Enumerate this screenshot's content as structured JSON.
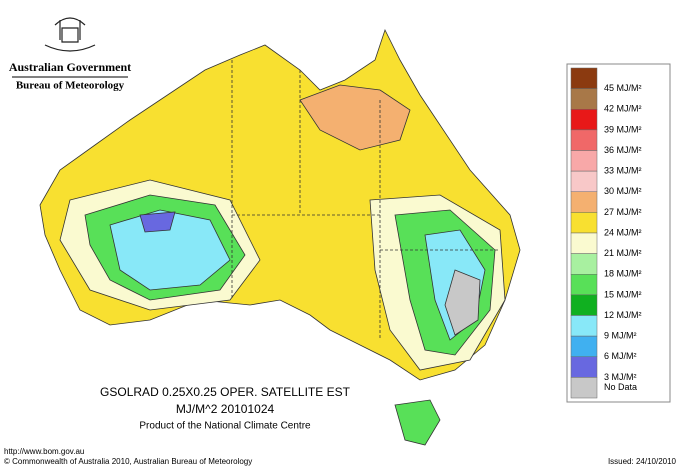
{
  "header": {
    "title": "Australian Government",
    "subtitle": "Bureau of Meteorology"
  },
  "product": {
    "line1": "GSOLRAD    0.25X0.25 OPER. SATELLITE EST",
    "line2": "MJ/M^2   20101024",
    "line3": "Product of the National Climate Centre"
  },
  "legend": {
    "items": [
      {
        "label": "45 MJ/M²",
        "color": "#8b3a10"
      },
      {
        "label": "42 MJ/M²",
        "color": "#a87848"
      },
      {
        "label": "39 MJ/M²",
        "color": "#e81818"
      },
      {
        "label": "36 MJ/M²",
        "color": "#f06868"
      },
      {
        "label": "33 MJ/M²",
        "color": "#f8a8a8"
      },
      {
        "label": "30 MJ/M²",
        "color": "#f8c8c8"
      },
      {
        "label": "27 MJ/M²",
        "color": "#f4b070"
      },
      {
        "label": "24 MJ/M²",
        "color": "#f8e030"
      },
      {
        "label": "21 MJ/M²",
        "color": "#fafad0"
      },
      {
        "label": "18 MJ/M²",
        "color": "#a8f0a0"
      },
      {
        "label": "15 MJ/M²",
        "color": "#58e058"
      },
      {
        "label": "12 MJ/M²",
        "color": "#10b020"
      },
      {
        "label": "9 MJ/M²",
        "color": "#88e8f8"
      },
      {
        "label": "6 MJ/M²",
        "color": "#40b0f0"
      },
      {
        "label": "3 MJ/M²",
        "color": "#6868e0"
      },
      {
        "label": "No Data",
        "color": "#c8c8c8"
      }
    ]
  },
  "footer": {
    "url": "http://www.bom.gov.au",
    "copyright": "© Commonwealth of Australia 2010, Australian Bureau of Meteorology",
    "issued": "Issued: 24/10/2010"
  }
}
